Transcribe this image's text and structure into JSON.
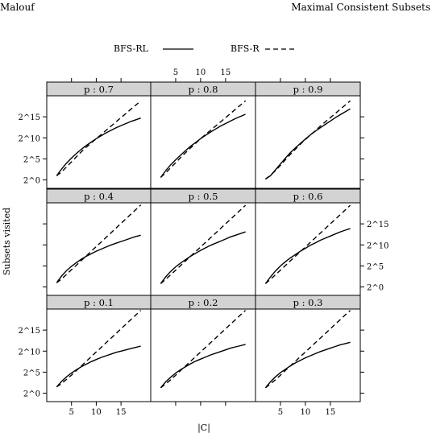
{
  "header": {
    "left": "Malouf",
    "right": "Maximal Consistent Subsets"
  },
  "chart_data": {
    "type": "line",
    "layout": "trellis 3x3",
    "xlabel": "|C|",
    "ylabel": "Subsets visited",
    "x_ticks": [
      5,
      10,
      15
    ],
    "x_tick_labels": [
      "5",
      "10",
      "15"
    ],
    "y_ticks": [
      0,
      5,
      10,
      15
    ],
    "y_tick_labels": [
      "2^0",
      "2^5",
      "2^10",
      "2^15"
    ],
    "xlim": [
      0,
      21
    ],
    "ylim": [
      -2,
      20
    ],
    "y_scale": "log2",
    "legend": {
      "placement": "top",
      "entries": [
        {
          "name": "BFS-RL",
          "style": "solid"
        },
        {
          "name": "BFS-R",
          "style": "dashed"
        }
      ]
    },
    "x": [
      2,
      3,
      4,
      5,
      6,
      7,
      8,
      9,
      10,
      11,
      12,
      13,
      14,
      15,
      16,
      17,
      18,
      19
    ],
    "panels": [
      {
        "strip": "p : 0.7",
        "series": [
          {
            "name": "BFS-RL",
            "values": [
              1.0,
              2.6,
              4.0,
              5.2,
              6.3,
              7.3,
              8.2,
              9.0,
              9.8,
              10.5,
              11.2,
              11.8,
              12.4,
              12.9,
              13.4,
              13.9,
              14.3,
              14.7
            ]
          },
          {
            "name": "BFS-R",
            "values": [
              1.0,
              1.9,
              3.1,
              4.3,
              5.5,
              6.7,
              7.8,
              8.8,
              9.8,
              10.8,
              11.8,
              12.8,
              13.8,
              14.8,
              15.8,
              16.8,
              17.8,
              18.8
            ]
          }
        ]
      },
      {
        "strip": "p : 0.8",
        "series": [
          {
            "name": "BFS-RL",
            "values": [
              0.6,
              2.2,
              3.6,
              4.8,
              5.9,
              7.0,
              8.0,
              8.9,
              9.8,
              10.6,
              11.4,
              12.1,
              12.8,
              13.4,
              14.0,
              14.6,
              15.1,
              15.6
            ]
          },
          {
            "name": "BFS-R",
            "values": [
              0.6,
              1.7,
              2.9,
              4.1,
              5.3,
              6.5,
              7.6,
              8.7,
              9.8,
              10.8,
              11.8,
              12.8,
              13.8,
              14.8,
              15.8,
              16.8,
              17.8,
              18.8
            ]
          }
        ]
      },
      {
        "strip": "p : 0.9",
        "series": [
          {
            "name": "BFS-RL",
            "values": [
              0.2,
              1.0,
              2.4,
              3.8,
              5.2,
              6.5,
              7.6,
              8.7,
              9.7,
              10.7,
              11.6,
              12.4,
              13.2,
              14.0,
              14.8,
              15.5,
              16.2,
              16.9
            ]
          },
          {
            "name": "BFS-R",
            "values": [
              0.2,
              1.1,
              2.2,
              3.5,
              4.8,
              6.1,
              7.3,
              8.5,
              9.6,
              10.7,
              11.7,
              12.8,
              13.8,
              14.8,
              15.8,
              16.8,
              17.8,
              18.8
            ]
          }
        ]
      },
      {
        "strip": "p : 0.4",
        "series": [
          {
            "name": "BFS-RL",
            "values": [
              1.0,
              2.6,
              3.9,
              4.9,
              5.8,
              6.6,
              7.3,
              7.9,
              8.5,
              9.0,
              9.5,
              10.0,
              10.4,
              10.8,
              11.2,
              11.6,
              12.0,
              12.3
            ]
          },
          {
            "name": "BFS-R",
            "values": [
              1.0,
              1.9,
              3.0,
              4.1,
              5.2,
              6.3,
              7.4,
              8.5,
              9.6,
              10.7,
              11.8,
              12.9,
              14.0,
              15.1,
              16.2,
              17.3,
              18.4,
              19.5
            ]
          }
        ]
      },
      {
        "strip": "p : 0.5",
        "series": [
          {
            "name": "BFS-RL",
            "values": [
              0.8,
              2.4,
              3.7,
              4.8,
              5.7,
              6.5,
              7.3,
              8.0,
              8.7,
              9.3,
              9.9,
              10.4,
              10.9,
              11.4,
              11.9,
              12.3,
              12.7,
              13.1
            ]
          },
          {
            "name": "BFS-R",
            "values": [
              0.8,
              1.8,
              2.9,
              4.0,
              5.1,
              6.2,
              7.3,
              8.4,
              9.5,
              10.6,
              11.7,
              12.8,
              13.9,
              15.0,
              16.1,
              17.2,
              18.3,
              19.4
            ]
          }
        ]
      },
      {
        "strip": "p : 0.6",
        "series": [
          {
            "name": "BFS-RL",
            "values": [
              0.8,
              2.4,
              3.8,
              5.0,
              6.0,
              6.9,
              7.7,
              8.5,
              9.2,
              9.9,
              10.5,
              11.1,
              11.6,
              12.1,
              12.6,
              13.1,
              13.5,
              13.9
            ]
          },
          {
            "name": "BFS-R",
            "values": [
              0.8,
              1.8,
              2.9,
              4.0,
              5.1,
              6.2,
              7.3,
              8.4,
              9.5,
              10.6,
              11.7,
              12.8,
              13.9,
              15.0,
              16.1,
              17.2,
              18.3,
              19.4
            ]
          }
        ]
      },
      {
        "strip": "p : 0.1",
        "series": [
          {
            "name": "BFS-RL",
            "values": [
              1.5,
              2.8,
              3.9,
              4.8,
              5.6,
              6.3,
              6.9,
              7.5,
              8.0,
              8.5,
              8.9,
              9.3,
              9.7,
              10.0,
              10.3,
              10.6,
              10.9,
              11.2
            ]
          },
          {
            "name": "BFS-R",
            "values": [
              1.5,
              2.3,
              3.3,
              4.3,
              5.4,
              6.5,
              7.6,
              8.7,
              9.8,
              10.9,
              12.0,
              13.1,
              14.2,
              15.3,
              16.4,
              17.5,
              18.6,
              19.7
            ]
          }
        ]
      },
      {
        "strip": "p : 0.2",
        "series": [
          {
            "name": "BFS-RL",
            "values": [
              1.3,
              2.7,
              3.8,
              4.8,
              5.6,
              6.3,
              7.0,
              7.6,
              8.1,
              8.6,
              9.1,
              9.5,
              9.9,
              10.3,
              10.7,
              11.0,
              11.3,
              11.6
            ]
          },
          {
            "name": "BFS-R",
            "values": [
              1.3,
              2.2,
              3.2,
              4.3,
              5.4,
              6.5,
              7.6,
              8.7,
              9.8,
              10.9,
              12.0,
              13.1,
              14.2,
              15.3,
              16.4,
              17.5,
              18.6,
              19.7
            ]
          }
        ]
      },
      {
        "strip": "p : 0.3",
        "series": [
          {
            "name": "BFS-RL",
            "values": [
              1.3,
              2.7,
              3.9,
              4.9,
              5.7,
              6.5,
              7.2,
              7.8,
              8.4,
              8.9,
              9.4,
              9.9,
              10.3,
              10.7,
              11.1,
              11.5,
              11.8,
              12.1
            ]
          },
          {
            "name": "BFS-R",
            "values": [
              1.3,
              2.2,
              3.2,
              4.3,
              5.4,
              6.5,
              7.6,
              8.7,
              9.8,
              10.9,
              12.0,
              13.1,
              14.2,
              15.3,
              16.4,
              17.5,
              18.6,
              19.7
            ]
          }
        ]
      }
    ]
  }
}
